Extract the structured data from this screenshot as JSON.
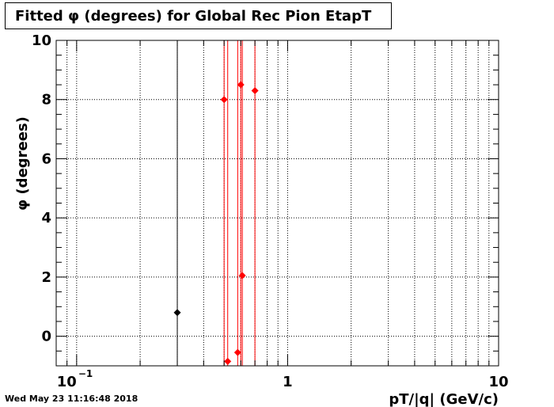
{
  "chart_data": {
    "type": "scatter",
    "title": "Fitted φ (degrees) for Global Rec Pion EtapT",
    "xlabel": "pT/|q| (GeV/c)",
    "ylabel": "φ (degrees)",
    "xscale": "log",
    "xlim": [
      0.08,
      10
    ],
    "ylim": [
      -1,
      10
    ],
    "x_ticks": [
      {
        "value": 0.1,
        "base": "10",
        "exp": "−1"
      },
      {
        "value": 1,
        "base": "1",
        "exp": ""
      },
      {
        "value": 10,
        "base": "10",
        "exp": ""
      }
    ],
    "y_ticks": [
      "0",
      "2",
      "4",
      "6",
      "8",
      "10"
    ],
    "grid": true,
    "series": [
      {
        "color": "#000000",
        "points": [
          {
            "x": 0.3,
            "y": 0.8
          }
        ]
      },
      {
        "color": "#ff0000",
        "points": [
          {
            "x": 0.5,
            "y": 8.0
          },
          {
            "x": 0.52,
            "y": -0.85
          },
          {
            "x": 0.58,
            "y": -0.55
          },
          {
            "x": 0.6,
            "y": 8.5
          },
          {
            "x": 0.61,
            "y": 2.05
          },
          {
            "x": 0.7,
            "y": 8.3
          }
        ]
      }
    ]
  },
  "timestamp": "Wed May 23 11:16:48 2018"
}
